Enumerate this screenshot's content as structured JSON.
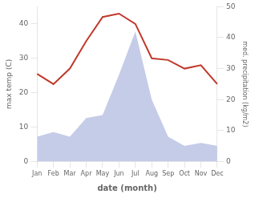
{
  "chart_data": {
    "type": "line",
    "categories": [
      "Jan",
      "Feb",
      "Mar",
      "Apr",
      "May",
      "Jun",
      "Jul",
      "Aug",
      "Sep",
      "Oct",
      "Nov",
      "Dec"
    ],
    "series": [
      {
        "type": "area",
        "axis": "y2",
        "color": "#c5cce8",
        "values": [
          8,
          9.5,
          8,
          14,
          15,
          28,
          42,
          20,
          8,
          5,
          6,
          5
        ]
      },
      {
        "type": "line",
        "color": "#c0392b",
        "values": [
          25.5,
          22.5,
          27,
          35,
          42,
          43,
          40,
          30,
          29.5,
          27,
          28,
          22.5
        ]
      }
    ],
    "xlabel": "date (month)",
    "ylabel": "max temp (C)",
    "y2label": "med. precipitation (kg/m2)",
    "ylim": [
      0,
      45
    ],
    "yticks": [
      0,
      10,
      20,
      30,
      40
    ],
    "y2lim": [
      0,
      50
    ],
    "y2ticks": [
      0,
      10,
      20,
      30,
      40,
      50
    ],
    "grid": false
  }
}
